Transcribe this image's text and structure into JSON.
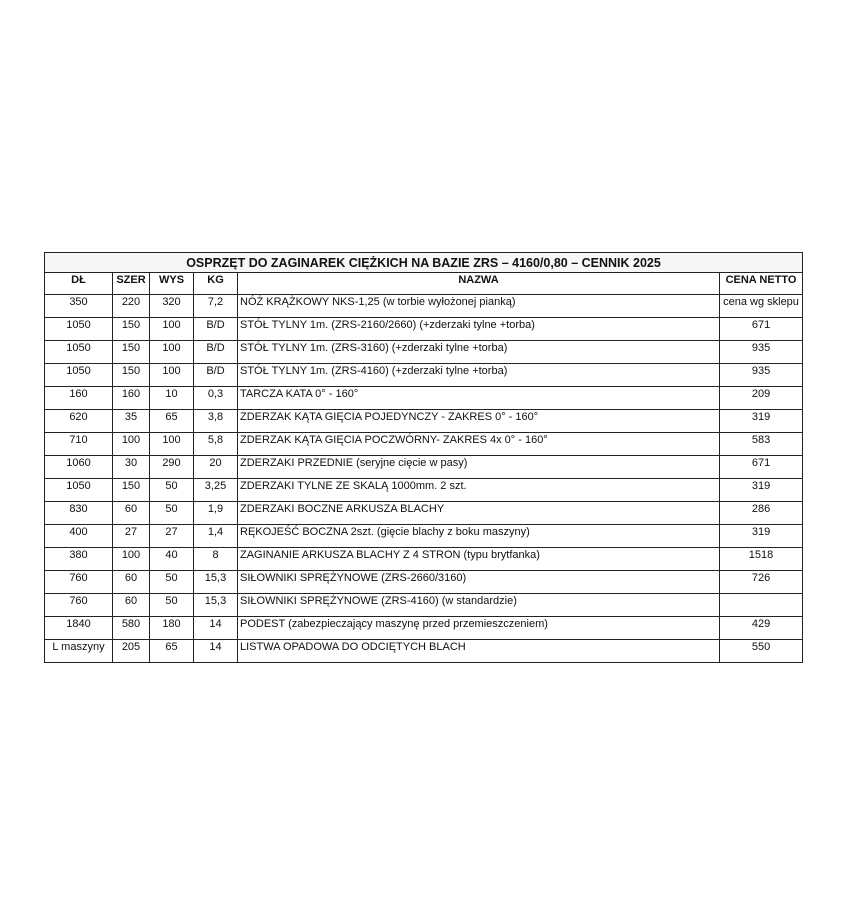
{
  "title": "OSPRZĘT DO ZAGINAREK CIĘŻKICH NA BAZIE ZRS – 4160/0,80 – CENNIK 2025",
  "headers": [
    "DŁ",
    "SZER",
    "WYS",
    "KG",
    "NAZWA",
    "CENA NETTO"
  ],
  "rows": [
    [
      "350",
      "220",
      "320",
      "7,2",
      "NÓŻ KRĄŻKOWY NKS-1,25 (w torbie wyłożonej pianką)",
      "cena wg sklepu"
    ],
    [
      "1050",
      "150",
      "100",
      "B/D",
      "STÓŁ TYLNY 1m. (ZRS-2160/2660) (+zderzaki tylne +torba)",
      "671"
    ],
    [
      "1050",
      "150",
      "100",
      "B/D",
      "STÓŁ TYLNY 1m. (ZRS-3160) (+zderzaki tylne +torba)",
      "935"
    ],
    [
      "1050",
      "150",
      "100",
      "B/D",
      "STÓŁ TYLNY 1m. (ZRS-4160) (+zderzaki tylne +torba)",
      "935"
    ],
    [
      "160",
      "160",
      "10",
      "0,3",
      "TARCZA KATA 0° - 160°",
      "209"
    ],
    [
      "620",
      "35",
      "65",
      "3,8",
      "ZDERZAK KĄTA GIĘCIA POJEDYNCZY - ZAKRES 0° - 160°",
      "319"
    ],
    [
      "710",
      "100",
      "100",
      "5,8",
      "ZDERZAK KĄTA GIĘCIA POCZWÓRNY- ZAKRES 4x 0° - 160°",
      "583"
    ],
    [
      "1060",
      "30",
      "290",
      "20",
      "ZDERZAKI PRZEDNIE (seryjne cięcie w pasy)",
      "671"
    ],
    [
      "1050",
      "150",
      "50",
      "3,25",
      "ZDERZAKI TYLNE ZE SKALĄ 1000mm. 2 szt.",
      "319"
    ],
    [
      "830",
      "60",
      "50",
      "1,9",
      "ZDERZAKI BOCZNE ARKUSZA BLACHY",
      "286"
    ],
    [
      "400",
      "27",
      "27",
      "1,4",
      "RĘKOJEŚĆ BOCZNA 2szt. (gięcie blachy z boku maszyny)",
      "319"
    ],
    [
      "380",
      "100",
      "40",
      "8",
      "ZAGINANIE ARKUSZA BLACHY Z 4 STRON (typu brytfanka)",
      "1518"
    ],
    [
      "760",
      "60",
      "50",
      "15,3",
      "SIŁOWNIKI SPRĘŻYNOWE (ZRS-2660/3160)",
      "726"
    ],
    [
      "760",
      "60",
      "50",
      "15,3",
      "SIŁOWNIKI SPRĘŻYNOWE (ZRS-4160) (w standardzie)",
      ""
    ],
    [
      "1840",
      "580",
      "180",
      "14",
      "PODEST (zabezpieczający maszynę przed przemieszczeniem)",
      "429"
    ],
    [
      "L maszyny",
      "205",
      "65",
      "14",
      "LISTWA OPADOWA DO ODCIĘTYCH BLACH",
      "550"
    ]
  ]
}
